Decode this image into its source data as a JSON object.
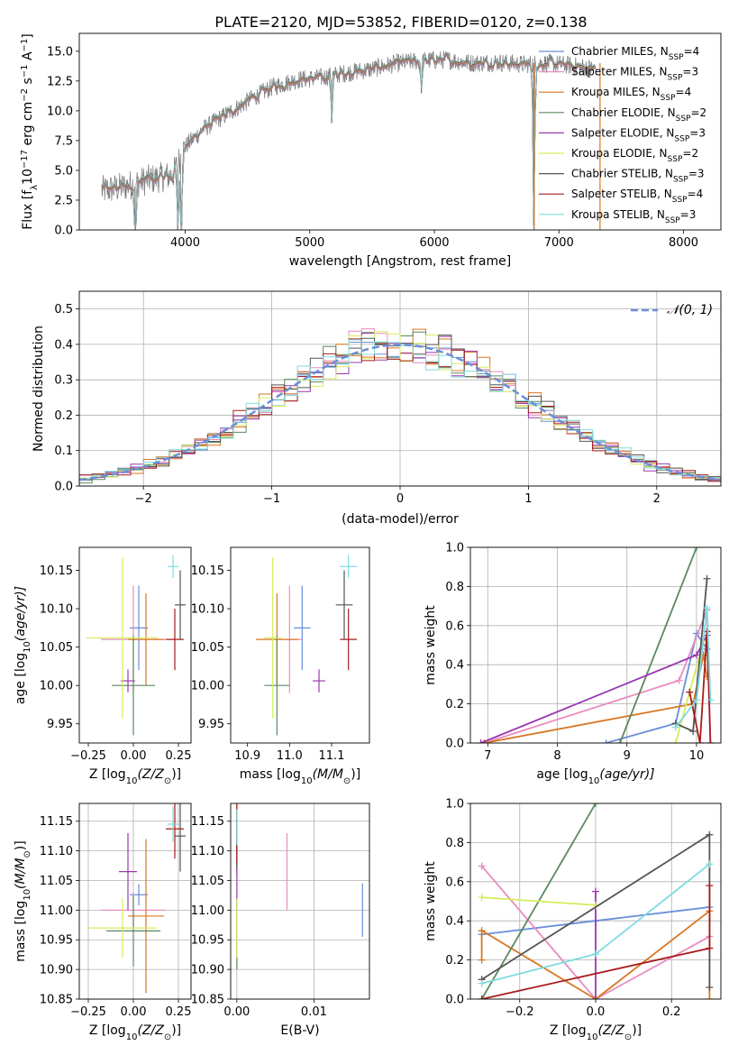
{
  "figure_title": "PLATE=2120, MJD=53852, FIBERID=0120, z=0.138",
  "colors": {
    "chabrier_miles": "#6a8fd8",
    "salpeter_miles": "#e98cc0",
    "kroupa_miles": "#d9771f",
    "chabrier_elodie": "#5a8a5f",
    "salpeter_elodie": "#9a38b0",
    "kroupa_elodie": "#d7ec5c",
    "chabrier_stelib": "#555555",
    "salpeter_stelib": "#a81c1c",
    "kroupa_stelib": "#7edbe0",
    "grid": "#b0b0b0",
    "spectrum": "#777777"
  },
  "chart_data": [
    {
      "id": "spectrum",
      "type": "line",
      "title": "PLATE=2120, MJD=53852, FIBERID=0120, z=0.138",
      "xlabel": "wavelength [Angstrom, rest frame]",
      "ylabel_parts": [
        "Flux [f",
        "λ",
        "10",
        "−17",
        " erg cm",
        "−2",
        " s",
        "−1",
        " A",
        "−1",
        "]"
      ],
      "xlim": [
        3150,
        8300
      ],
      "ylim": [
        0,
        16.5
      ],
      "xticks": [
        4000,
        5000,
        6000,
        7000,
        8000
      ],
      "yticks": [
        0.0,
        2.5,
        5.0,
        7.5,
        10.0,
        12.5,
        15.0
      ],
      "ytick_labels": [
        "0.0",
        "2.5",
        "5.0",
        "7.5",
        "10.0",
        "12.5",
        "15.0"
      ],
      "legend_position": "top-right",
      "legend": [
        {
          "label": "Chabrier MILES, N",
          "sub": "SSP",
          "tail": "=4",
          "color_key": "chabrier_miles"
        },
        {
          "label": "Salpeter MILES, N",
          "sub": "SSP",
          "tail": "=3",
          "color_key": "salpeter_miles"
        },
        {
          "label": "Kroupa MILES, N",
          "sub": "SSP",
          "tail": "=4",
          "color_key": "kroupa_miles"
        },
        {
          "label": "Chabrier ELODIE, N",
          "sub": "SSP",
          "tail": "=2",
          "color_key": "chabrier_elodie"
        },
        {
          "label": "Salpeter ELODIE, N",
          "sub": "SSP",
          "tail": "=3",
          "color_key": "salpeter_elodie"
        },
        {
          "label": "Kroupa ELODIE, N",
          "sub": "SSP",
          "tail": "=2",
          "color_key": "kroupa_elodie"
        },
        {
          "label": "Chabrier STELIB, N",
          "sub": "SSP",
          "tail": "=3",
          "color_key": "chabrier_stelib"
        },
        {
          "label": "Salpeter STELIB, N",
          "sub": "SSP",
          "tail": "=4",
          "color_key": "salpeter_stelib"
        },
        {
          "label": "Kroupa STELIB, N",
          "sub": "SSP",
          "tail": "=3",
          "color_key": "kroupa_stelib"
        }
      ],
      "continuum_anchor_points": [
        [
          3330,
          3.3
        ],
        [
          3500,
          3.6
        ],
        [
          3700,
          4.2
        ],
        [
          3900,
          4.6
        ],
        [
          4000,
          7.0
        ],
        [
          4150,
          8.5
        ],
        [
          4300,
          9.5
        ],
        [
          4500,
          10.8
        ],
        [
          4700,
          12.0
        ],
        [
          4900,
          12.6
        ],
        [
          5100,
          12.8
        ],
        [
          5300,
          13.2
        ],
        [
          5500,
          13.5
        ],
        [
          5700,
          14.0
        ],
        [
          5900,
          14.2
        ],
        [
          6100,
          14.3
        ],
        [
          6300,
          14.0
        ],
        [
          6500,
          14.1
        ],
        [
          6700,
          13.9
        ],
        [
          6900,
          14.0
        ],
        [
          7100,
          13.8
        ],
        [
          7300,
          13.5
        ]
      ],
      "spectrum_range": [
        3330,
        7300
      ],
      "dips": [
        [
          3600,
          0.0
        ],
        [
          3940,
          0.0
        ],
        [
          3970,
          0.0
        ],
        [
          5175,
          9.0
        ],
        [
          5895,
          11.5
        ],
        [
          6800,
          0.0
        ],
        [
          7330,
          0.0
        ]
      ]
    },
    {
      "id": "residuals",
      "type": "step",
      "xlabel": "(data-model)/error",
      "ylabel": "Normed distribution",
      "xlim": [
        -2.5,
        2.5
      ],
      "ylim": [
        0,
        0.55
      ],
      "xticks": [
        -2,
        -1,
        0,
        1,
        2
      ],
      "xtick_labels": [
        "−2",
        "−1",
        "0",
        "1",
        "2"
      ],
      "yticks": [
        0.0,
        0.1,
        0.2,
        0.3,
        0.4,
        0.5
      ],
      "ytick_labels": [
        "0.0",
        "0.1",
        "0.2",
        "0.3",
        "0.4",
        "0.5"
      ],
      "legend_position": "top-right",
      "legend_label": "𝒩(0, 1)",
      "reference": "normal(0,1)",
      "bin_width": 0.1,
      "series_count": 9
    },
    {
      "id": "age_vs_Z",
      "type": "errorbar",
      "xlabel_parts": [
        "Z [log",
        "10",
        "(Z/Z",
        "⊙",
        ")]"
      ],
      "ylabel_parts": [
        "age  [log",
        "10",
        "(age/yr)]"
      ],
      "xlim": [
        -0.3,
        0.32
      ],
      "ylim": [
        9.925,
        10.18
      ],
      "xticks": [
        -0.25,
        0.0,
        0.25
      ],
      "xtick_labels": [
        "−0.25",
        "0.00",
        "0.25"
      ],
      "yticks": [
        9.95,
        10.0,
        10.05,
        10.1,
        10.15
      ],
      "ytick_labels": [
        "9.95",
        "10.00",
        "10.05",
        "10.10",
        "10.15"
      ],
      "points": [
        {
          "color_key": "chabrier_miles",
          "x": 0.03,
          "xerr": 0.05,
          "y": 10.075,
          "yerr": 0.055
        },
        {
          "color_key": "salpeter_miles",
          "x": 0.0,
          "xerr": 0.18,
          "y": 10.06,
          "yerr": 0.07
        },
        {
          "color_key": "kroupa_miles",
          "x": 0.07,
          "xerr": 0.1,
          "y": 10.06,
          "yerr": 0.06
        },
        {
          "color_key": "chabrier_elodie",
          "x": 0.0,
          "xerr": 0.12,
          "y": 10.0,
          "yerr": 0.065
        },
        {
          "color_key": "salpeter_elodie",
          "x": -0.03,
          "xerr": 0.04,
          "y": 10.006,
          "yerr": 0.015
        },
        {
          "color_key": "kroupa_elodie",
          "x": -0.06,
          "xerr": 0.2,
          "y": 10.062,
          "yerr": 0.105
        },
        {
          "color_key": "chabrier_stelib",
          "x": 0.26,
          "xerr": 0.03,
          "y": 10.105,
          "yerr": 0.045
        },
        {
          "color_key": "salpeter_stelib",
          "x": 0.23,
          "xerr": 0.05,
          "y": 10.06,
          "yerr": 0.04
        },
        {
          "color_key": "kroupa_stelib",
          "x": 0.22,
          "xerr": 0.03,
          "y": 10.155,
          "yerr": 0.015
        }
      ]
    },
    {
      "id": "age_vs_mass",
      "type": "errorbar",
      "xlabel_parts": [
        "mass [log",
        "10",
        "(M/M",
        "⊙",
        ")]"
      ],
      "xlim": [
        10.86,
        11.19
      ],
      "ylim": [
        9.925,
        10.18
      ],
      "xticks": [
        10.9,
        11.0,
        11.1
      ],
      "xtick_labels": [
        "10.9",
        "11.0",
        "11.1"
      ],
      "yticks": [
        9.95,
        10.0,
        10.05,
        10.1,
        10.15
      ],
      "ytick_labels": [
        "9.95",
        "10.00",
        "10.05",
        "10.10",
        "10.15"
      ],
      "points": [
        {
          "color_key": "chabrier_miles",
          "x": 11.03,
          "xerr": 0.02,
          "y": 10.075,
          "yerr": 0.055
        },
        {
          "color_key": "salpeter_miles",
          "x": 11.0,
          "xerr": 0.03,
          "y": 10.06,
          "yerr": 0.07
        },
        {
          "color_key": "kroupa_miles",
          "x": 10.97,
          "xerr": 0.05,
          "y": 10.06,
          "yerr": 0.06
        },
        {
          "color_key": "chabrier_elodie",
          "x": 10.97,
          "xerr": 0.03,
          "y": 10.0,
          "yerr": 0.065
        },
        {
          "color_key": "salpeter_elodie",
          "x": 11.07,
          "xerr": 0.015,
          "y": 10.006,
          "yerr": 0.015
        },
        {
          "color_key": "kroupa_elodie",
          "x": 10.96,
          "xerr": 0.02,
          "y": 10.062,
          "yerr": 0.105
        },
        {
          "color_key": "chabrier_stelib",
          "x": 11.13,
          "xerr": 0.02,
          "y": 10.105,
          "yerr": 0.045
        },
        {
          "color_key": "salpeter_stelib",
          "x": 11.14,
          "xerr": 0.02,
          "y": 10.06,
          "yerr": 0.04
        },
        {
          "color_key": "kroupa_stelib",
          "x": 11.14,
          "xerr": 0.02,
          "y": 10.155,
          "yerr": 0.015
        }
      ]
    },
    {
      "id": "weight_vs_age",
      "type": "line",
      "xlabel_parts": [
        "age  [log",
        "10",
        "(age/yr)]"
      ],
      "ylabel": "mass weight",
      "xlim": [
        6.75,
        10.35
      ],
      "ylim": [
        0,
        1.0
      ],
      "xticks": [
        7,
        8,
        9,
        10
      ],
      "xtick_labels": [
        "7",
        "8",
        "9",
        "10"
      ],
      "yticks": [
        0.0,
        0.2,
        0.4,
        0.6,
        0.8,
        1.0
      ],
      "ytick_labels": [
        "0.0",
        "0.2",
        "0.4",
        "0.6",
        "0.8",
        "1.0"
      ],
      "series": [
        {
          "color_key": "chabrier_miles",
          "x": [
            8.7,
            9.7,
            10.0,
            10.15
          ],
          "y": [
            0.0,
            0.1,
            0.56,
            0.48
          ]
        },
        {
          "color_key": "salpeter_miles",
          "x": [
            6.95,
            9.75,
            10.15,
            10.2
          ],
          "y": [
            0.0,
            0.32,
            0.68,
            0.0
          ]
        },
        {
          "color_key": "kroupa_miles",
          "x": [
            6.95,
            9.95,
            10.1,
            10.15
          ],
          "y": [
            0.0,
            0.2,
            0.45,
            0.34
          ]
        },
        {
          "color_key": "chabrier_elodie",
          "x": [
            8.9,
            10.0
          ],
          "y": [
            0.0,
            1.0
          ]
        },
        {
          "color_key": "salpeter_elodie",
          "x": [
            6.9,
            10.0,
            10.15
          ],
          "y": [
            0.0,
            0.45,
            0.55
          ]
        },
        {
          "color_key": "kroupa_elodie",
          "x": [
            9.7,
            10.1
          ],
          "y": [
            0.0,
            0.52
          ]
        },
        {
          "color_key": "chabrier_stelib",
          "x": [
            9.7,
            9.95,
            10.15
          ],
          "y": [
            0.1,
            0.06,
            0.84
          ]
        },
        {
          "color_key": "salpeter_stelib",
          "x": [
            9.9,
            10.05,
            10.15,
            10.2
          ],
          "y": [
            0.26,
            0.0,
            0.57,
            0.0
          ]
        },
        {
          "color_key": "kroupa_stelib",
          "x": [
            9.7,
            10.0,
            10.15,
            10.2
          ],
          "y": [
            0.08,
            0.22,
            0.69,
            0.22
          ]
        }
      ]
    },
    {
      "id": "mass_vs_Z",
      "type": "errorbar",
      "xlabel_parts": [
        "Z [log",
        "10",
        "(Z/Z",
        "⊙",
        ")]"
      ],
      "ylabel_parts": [
        "mass [log",
        "10",
        "(M/M",
        "⊙",
        ")]"
      ],
      "xlim": [
        -0.3,
        0.32
      ],
      "ylim": [
        10.85,
        11.18
      ],
      "xticks": [
        -0.25,
        0.0,
        0.25
      ],
      "xtick_labels": [
        "−0.25",
        "0.00",
        "0.25"
      ],
      "yticks": [
        10.85,
        10.9,
        10.95,
        11.0,
        11.05,
        11.1,
        11.15
      ],
      "ytick_labels": [
        "10.85",
        "10.90",
        "10.95",
        "11.00",
        "11.05",
        "11.10",
        "11.15"
      ],
      "points": [
        {
          "color_key": "chabrier_miles",
          "x": 0.03,
          "xerr": 0.05,
          "y": 11.026,
          "yerr": 0.018
        },
        {
          "color_key": "salpeter_miles",
          "x": 0.0,
          "xerr": 0.18,
          "y": 11.0,
          "yerr": 0.03
        },
        {
          "color_key": "kroupa_miles",
          "x": 0.07,
          "xerr": 0.1,
          "y": 10.99,
          "yerr": 0.13
        },
        {
          "color_key": "chabrier_elodie",
          "x": 0.0,
          "xerr": 0.15,
          "y": 10.965,
          "yerr": 0.06
        },
        {
          "color_key": "salpeter_elodie",
          "x": -0.03,
          "xerr": 0.05,
          "y": 11.065,
          "yerr": 0.065
        },
        {
          "color_key": "kroupa_elodie",
          "x": -0.06,
          "xerr": 0.19,
          "y": 10.97,
          "yerr": 0.05
        },
        {
          "color_key": "chabrier_stelib",
          "x": 0.26,
          "xerr": 0.03,
          "y": 11.125,
          "yerr": 0.06
        },
        {
          "color_key": "salpeter_stelib",
          "x": 0.23,
          "xerr": 0.05,
          "y": 11.137,
          "yerr": 0.05
        },
        {
          "color_key": "kroupa_stelib",
          "x": 0.22,
          "xerr": 0.03,
          "y": 11.145,
          "yerr": 0.03
        }
      ]
    },
    {
      "id": "mass_vs_EBV",
      "type": "errorbar",
      "xlabel": "E(B-V)",
      "xlim": [
        -0.0008,
        0.0172
      ],
      "ylim": [
        10.85,
        11.18
      ],
      "xticks": [
        0.0,
        0.01
      ],
      "xtick_labels": [
        "0.00",
        "0.01"
      ],
      "yticks": [
        10.85,
        10.9,
        10.95,
        11.0,
        11.05,
        11.1,
        11.15
      ],
      "ytick_labels": [
        "10.85",
        "10.90",
        "10.95",
        "11.00",
        "11.05",
        "11.10",
        "11.15"
      ],
      "points": [
        {
          "color_key": "chabrier_miles",
          "x": 0.0163,
          "y": 11.0,
          "yerr": 0.045
        },
        {
          "color_key": "salpeter_miles",
          "x": 0.0065,
          "y": 11.065,
          "yerr": 0.065
        },
        {
          "color_key": "kroupa_miles",
          "x": 0.0,
          "y": 11.12,
          "yerr": 0.06
        },
        {
          "color_key": "chabrier_elodie",
          "x": 0.0,
          "y": 10.96,
          "yerr": 0.06
        },
        {
          "color_key": "salpeter_elodie",
          "x": 0.0,
          "y": 11.06,
          "yerr": 0.06
        },
        {
          "color_key": "kroupa_elodie",
          "x": 0.0,
          "y": 10.97,
          "yerr": 0.05
        },
        {
          "color_key": "chabrier_stelib",
          "x": 0.0,
          "y": 11.12,
          "yerr": 0.05
        },
        {
          "color_key": "salpeter_stelib",
          "x": 0.0,
          "y": 11.13,
          "yerr": 0.05
        },
        {
          "color_key": "kroupa_stelib",
          "x": 0.0,
          "y": 11.14,
          "yerr": 0.03
        }
      ]
    },
    {
      "id": "weight_vs_Z",
      "type": "line",
      "xlabel_parts": [
        "Z [log",
        "10",
        "(Z/Z",
        "⊙",
        ")]"
      ],
      "ylabel": "mass weight",
      "xlim": [
        -0.33,
        0.33
      ],
      "ylim": [
        0,
        1.0
      ],
      "xticks": [
        -0.2,
        0.0,
        0.2
      ],
      "xtick_labels": [
        "−0.2",
        "0.0",
        "0.2"
      ],
      "yticks": [
        0.0,
        0.2,
        0.4,
        0.6,
        0.8,
        1.0
      ],
      "ytick_labels": [
        "0.0",
        "0.2",
        "0.4",
        "0.6",
        "0.8",
        "1.0"
      ],
      "series": [
        {
          "color_key": "chabrier_miles",
          "x": [
            -0.3,
            0.0,
            0.3
          ],
          "y": [
            0.33,
            0.4,
            0.47
          ]
        },
        {
          "color_key": "salpeter_miles",
          "x": [
            -0.3,
            0.0,
            0.3
          ],
          "y": [
            0.68,
            0.0,
            0.32
          ]
        },
        {
          "color_key": "kroupa_miles",
          "x": [
            -0.3,
            -0.3,
            0.0,
            0.3,
            0.3
          ],
          "y": [
            0.2,
            0.35,
            0.0,
            0.45,
            0.0
          ]
        },
        {
          "color_key": "chabrier_elodie",
          "x": [
            -0.3,
            0.0
          ],
          "y": [
            0.0,
            1.0
          ]
        },
        {
          "color_key": "salpeter_elodie",
          "x": [
            0.0,
            0.0
          ],
          "y": [
            0.0,
            0.55
          ]
        },
        {
          "color_key": "kroupa_elodie",
          "x": [
            -0.3,
            0.0
          ],
          "y": [
            0.52,
            0.48
          ]
        },
        {
          "color_key": "chabrier_stelib",
          "x": [
            -0.3,
            0.3,
            0.3
          ],
          "y": [
            0.1,
            0.84,
            0.06
          ]
        },
        {
          "color_key": "salpeter_stelib",
          "x": [
            -0.3,
            0.3,
            0.3
          ],
          "y": [
            0.0,
            0.26,
            0.58
          ]
        },
        {
          "color_key": "kroupa_stelib",
          "x": [
            -0.3,
            0.0,
            0.3
          ],
          "y": [
            0.08,
            0.23,
            0.69
          ]
        }
      ]
    }
  ]
}
